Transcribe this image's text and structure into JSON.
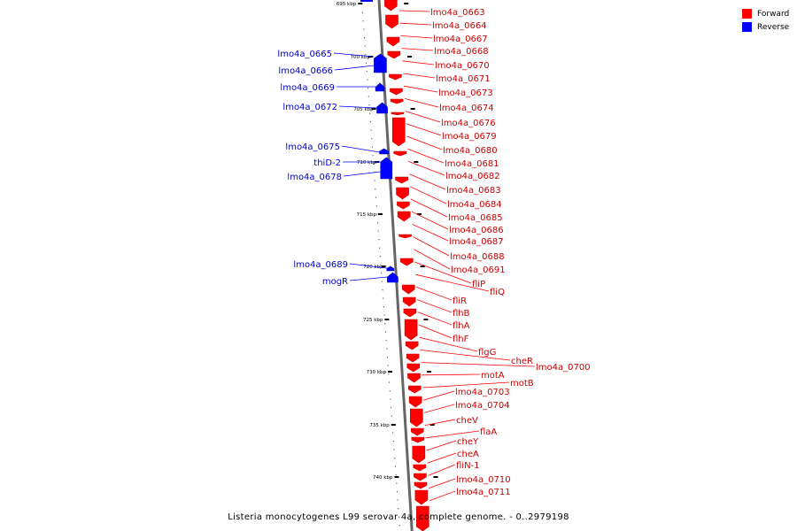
{
  "legend": [
    {
      "label": "Forward",
      "color": "#ff0000"
    },
    {
      "label": "Reverse",
      "color": "#0000ff"
    }
  ],
  "caption": "Listeria monocytogenes L99 serovar 4a, complete genome. - 0..2979198",
  "axis": {
    "unit": "kbp",
    "ticks": [
      "695 kbp",
      "700 kbp",
      "705 kbp",
      "710 kbp",
      "715 kbp",
      "720 kbp",
      "725 kbp",
      "730 kbp",
      "735 kbp",
      "740 kbp"
    ]
  },
  "forward_labels": [
    "lmo4a_0663",
    "lmo4a_0664",
    "lmo4a_0667",
    "lmo4a_0668",
    "lmo4a_0670",
    "lmo4a_0671",
    "lmo4a_0673",
    "lmo4a_0674",
    "lmo4a_0676",
    "lmo4a_0679",
    "lmo4a_0680",
    "lmo4a_0681",
    "lmo4a_0682",
    "lmo4a_0683",
    "lmo4a_0684",
    "lmo4a_0685",
    "lmo4a_0686",
    "lmo4a_0687",
    "lmo4a_0688",
    "lmo4a_0691",
    "fliP",
    "fliQ",
    "fliR",
    "flhB",
    "flhA",
    "flhF",
    "flgG",
    "cheR",
    "lmo4a_0700",
    "motA",
    "motB",
    "lmo4a_0703",
    "lmo4a_0704",
    "cheV",
    "flaA",
    "cheY",
    "cheA",
    "fliN-1",
    "lmo4a_0710",
    "lmo4a_0711"
  ],
  "reverse_labels": [
    "lmo4a_0665",
    "lmo4a_0666",
    "lmo4a_0669",
    "lmo4a_0672",
    "lmo4a_0675",
    "thiD-2",
    "lmo4a_0678",
    "lmo4a_0689",
    "mogR"
  ]
}
